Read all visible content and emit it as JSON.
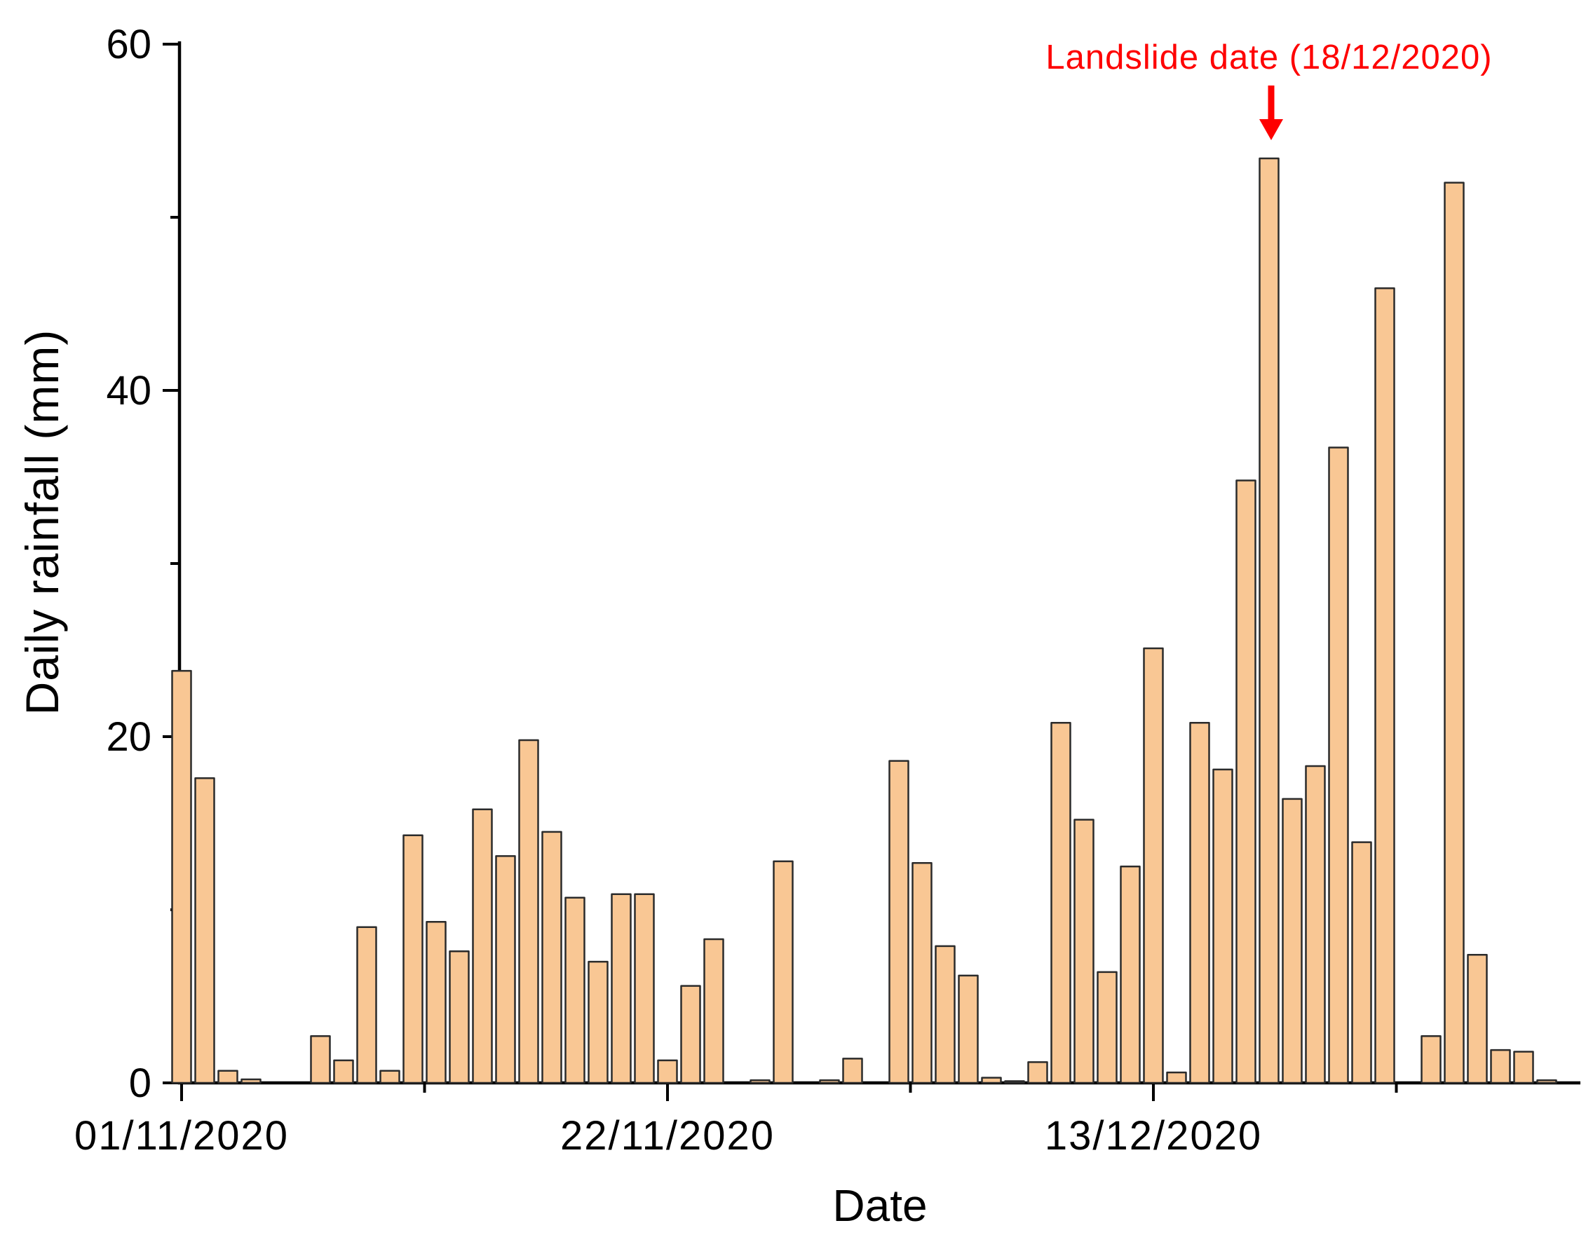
{
  "chart_data": {
    "type": "bar",
    "title": "",
    "xlabel": "Date",
    "ylabel": "Daily rainfall (mm)",
    "ylim": [
      0,
      60
    ],
    "grid": false,
    "legend_position": "none",
    "bar_fill": "#f9c794",
    "bar_stroke": "#2b2b2b",
    "axis_color": "#000000",
    "y_major_ticks": [
      0,
      20,
      40,
      60
    ],
    "y_tick_labels": [
      "0",
      "20",
      "40",
      "60"
    ],
    "y_minor_ticks": [
      10,
      30,
      50
    ],
    "x_tick_labels": [
      {
        "label": "01/11/2020",
        "day": 0
      },
      {
        "label": "22/11/2020",
        "day": 21
      },
      {
        "label": "13/12/2020",
        "day": 42
      }
    ],
    "x_minor_tick_days": [
      10.5,
      31.5,
      52.5
    ],
    "annotation": {
      "text": "Landslide date (18/12/2020)",
      "date": "18/12/2020",
      "day_index": 47,
      "color": "#fe0000"
    },
    "dates": [
      "01/11/2020",
      "02/11/2020",
      "03/11/2020",
      "04/11/2020",
      "05/11/2020",
      "06/11/2020",
      "07/11/2020",
      "08/11/2020",
      "09/11/2020",
      "10/11/2020",
      "11/11/2020",
      "12/11/2020",
      "13/11/2020",
      "14/11/2020",
      "15/11/2020",
      "16/11/2020",
      "17/11/2020",
      "18/11/2020",
      "19/11/2020",
      "20/11/2020",
      "21/11/2020",
      "22/11/2020",
      "23/11/2020",
      "24/11/2020",
      "25/11/2020",
      "26/11/2020",
      "27/11/2020",
      "28/11/2020",
      "29/11/2020",
      "30/11/2020",
      "01/12/2020",
      "02/12/2020",
      "03/12/2020",
      "04/12/2020",
      "05/12/2020",
      "06/12/2020",
      "07/12/2020",
      "08/12/2020",
      "09/12/2020",
      "10/12/2020",
      "11/12/2020",
      "12/12/2020",
      "13/12/2020",
      "14/12/2020",
      "15/12/2020",
      "16/12/2020",
      "17/12/2020",
      "18/12/2020",
      "19/12/2020",
      "20/12/2020",
      "21/12/2020",
      "22/12/2020",
      "23/12/2020",
      "24/12/2020",
      "25/12/2020",
      "26/12/2020",
      "27/12/2020",
      "28/12/2020",
      "29/12/2020",
      "30/12/2020",
      "31/12/2020"
    ],
    "values": [
      23.8,
      17.6,
      0.7,
      0.2,
      0,
      0,
      2.7,
      1.3,
      9.0,
      0.7,
      14.3,
      9.3,
      7.6,
      15.8,
      13.1,
      19.8,
      14.5,
      10.7,
      7.0,
      10.9,
      10.9,
      1.3,
      5.6,
      8.3,
      0,
      0.15,
      12.8,
      0,
      0.15,
      1.4,
      0,
      18.6,
      12.7,
      7.9,
      6.2,
      0.3,
      0.1,
      1.2,
      20.8,
      15.2,
      6.4,
      12.5,
      25.1,
      0.6,
      20.8,
      18.1,
      34.8,
      53.4,
      16.4,
      18.3,
      36.7,
      13.9,
      45.9,
      0,
      2.7,
      52.0,
      7.4,
      1.9,
      1.8,
      0.15,
      0
    ]
  }
}
